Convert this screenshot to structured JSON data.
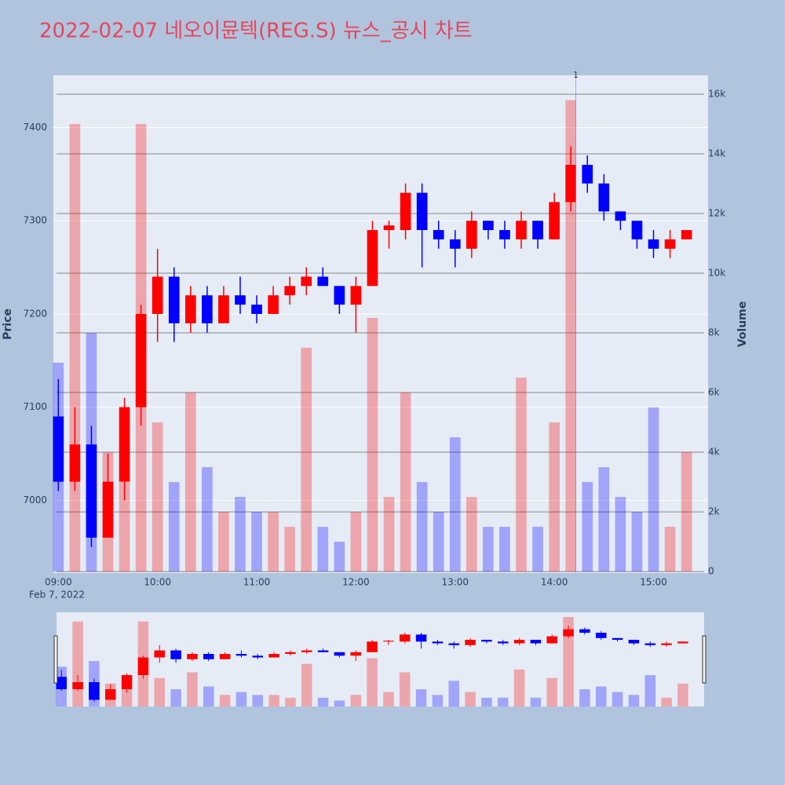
{
  "chart_data": {
    "type": "candlestick",
    "title": "2022-02-07 네오이뮨텍(REG.S) 뉴스_공시 차트",
    "y_label": "Price",
    "y2_label": "Volume",
    "x_date_label": "Feb 7, 2022",
    "up_color": "#ff0000",
    "down_color": "#0000ff",
    "grid": true,
    "x": [
      "2022-02-07 09:00",
      "2022-02-07 09:10",
      "2022-02-07 09:20",
      "2022-02-07 09:30",
      "2022-02-07 09:40",
      "2022-02-07 09:50",
      "2022-02-07 10:00",
      "2022-02-07 10:10",
      "2022-02-07 10:20",
      "2022-02-07 10:30",
      "2022-02-07 10:40",
      "2022-02-07 10:50",
      "2022-02-07 11:00",
      "2022-02-07 11:10",
      "2022-02-07 11:20",
      "2022-02-07 11:30",
      "2022-02-07 11:40",
      "2022-02-07 11:50",
      "2022-02-07 12:00",
      "2022-02-07 12:10",
      "2022-02-07 12:20",
      "2022-02-07 12:30",
      "2022-02-07 12:40",
      "2022-02-07 12:50",
      "2022-02-07 13:00",
      "2022-02-07 13:10",
      "2022-02-07 13:20",
      "2022-02-07 13:30",
      "2022-02-07 13:40",
      "2022-02-07 13:50",
      "2022-02-07 14:00",
      "2022-02-07 14:10",
      "2022-02-07 14:20",
      "2022-02-07 14:30",
      "2022-02-07 14:40",
      "2022-02-07 14:50",
      "2022-02-07 15:00",
      "2022-02-07 15:10",
      "2022-02-07 15:20"
    ],
    "open": [
      7090,
      7020,
      7060,
      6960,
      7020,
      7100,
      7200,
      7240,
      7190,
      7220,
      7190,
      7220,
      7210,
      7200,
      7220,
      7230,
      7240,
      7230,
      7210,
      7230,
      7290,
      7290,
      7330,
      7290,
      7280,
      7270,
      7300,
      7290,
      7280,
      7300,
      7280,
      7320,
      7360,
      7340,
      7310,
      7300,
      7280,
      7270,
      7280
    ],
    "high": [
      7130,
      7100,
      7080,
      7050,
      7110,
      7210,
      7270,
      7250,
      7230,
      7230,
      7230,
      7240,
      7220,
      7230,
      7240,
      7250,
      7250,
      7230,
      7240,
      7300,
      7300,
      7340,
      7340,
      7300,
      7290,
      7310,
      7300,
      7300,
      7310,
      7300,
      7330,
      7380,
      7370,
      7350,
      7310,
      7300,
      7290,
      7290,
      7290
    ],
    "low": [
      7010,
      7010,
      6950,
      6960,
      7000,
      7080,
      7170,
      7170,
      7180,
      7180,
      7190,
      7200,
      7190,
      7200,
      7210,
      7220,
      7230,
      7200,
      7180,
      7230,
      7270,
      7280,
      7250,
      7270,
      7250,
      7260,
      7280,
      7270,
      7270,
      7270,
      7280,
      7310,
      7330,
      7300,
      7290,
      7270,
      7260,
      7260,
      7280
    ],
    "close": [
      7020,
      7060,
      6960,
      7020,
      7100,
      7200,
      7240,
      7190,
      7220,
      7190,
      7220,
      7210,
      7200,
      7220,
      7230,
      7240,
      7230,
      7210,
      7230,
      7290,
      7295,
      7330,
      7290,
      7280,
      7270,
      7300,
      7290,
      7280,
      7300,
      7280,
      7320,
      7360,
      7340,
      7310,
      7300,
      7280,
      7270,
      7280,
      7290
    ],
    "volume": [
      7000,
      15000,
      8000,
      4000,
      3000,
      15000,
      5000,
      3000,
      6000,
      3500,
      2000,
      2500,
      2000,
      2000,
      1500,
      7500,
      1500,
      1000,
      2000,
      8500,
      2500,
      6000,
      3000,
      2000,
      4500,
      2500,
      1500,
      1500,
      6500,
      1500,
      5000,
      15800,
      3000,
      3500,
      2500,
      2000,
      5500,
      1500,
      4000
    ],
    "xlim": [
      "2022-02-07 08:57",
      "2022-02-07 15:33"
    ],
    "xticks": [
      {
        "value": "2022-02-07 09:00",
        "label": "09:00"
      },
      {
        "value": "2022-02-07 10:00",
        "label": "10:00"
      },
      {
        "value": "2022-02-07 11:00",
        "label": "11:00"
      },
      {
        "value": "2022-02-07 12:00",
        "label": "12:00"
      },
      {
        "value": "2022-02-07 13:00",
        "label": "13:00"
      },
      {
        "value": "2022-02-07 14:00",
        "label": "14:00"
      },
      {
        "value": "2022-02-07 15:00",
        "label": "15:00"
      }
    ],
    "ylim": [
      6922,
      7456
    ],
    "yticks": [
      7000,
      7100,
      7200,
      7300,
      7400
    ],
    "y2lim": [
      -50,
      16630
    ],
    "y2ticks": [
      0,
      {
        "value": 2000,
        "label": "2k"
      },
      {
        "value": 4000,
        "label": "4k"
      },
      {
        "value": 6000,
        "label": "6k"
      },
      {
        "value": 8000,
        "label": "8k"
      },
      {
        "value": 10000,
        "label": "10k"
      },
      {
        "value": 12000,
        "label": "12k"
      },
      {
        "value": 14000,
        "label": "14k"
      },
      {
        "value": 16000,
        "label": "16k"
      }
    ],
    "annotations": [
      {
        "x": "2022-02-07 14:13",
        "text": "1"
      }
    ]
  }
}
